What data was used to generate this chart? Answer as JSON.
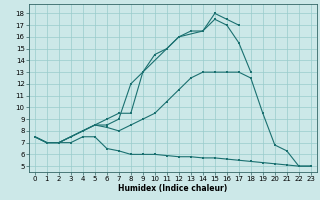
{
  "xlabel": "Humidex (Indice chaleur)",
  "bg_color": "#cce8e8",
  "grid_color": "#99cccc",
  "line_color": "#1a7070",
  "xlim": [
    -0.5,
    23.5
  ],
  "ylim": [
    4.5,
    18.8
  ],
  "xticks": [
    0,
    1,
    2,
    3,
    4,
    5,
    6,
    7,
    8,
    9,
    10,
    11,
    12,
    13,
    14,
    15,
    16,
    17,
    18,
    19,
    20,
    21,
    22,
    23
  ],
  "yticks": [
    5,
    6,
    7,
    8,
    9,
    10,
    11,
    12,
    13,
    14,
    15,
    16,
    17,
    18
  ],
  "line1_x": [
    0,
    1,
    2,
    3,
    4,
    5,
    6,
    7,
    8,
    9,
    10,
    11,
    12,
    13,
    14,
    15,
    16,
    17,
    18,
    19,
    20,
    21,
    22,
    23
  ],
  "line1_y": [
    7.5,
    7.0,
    7.0,
    7.0,
    7.5,
    7.5,
    6.5,
    6.3,
    6.0,
    6.0,
    6.0,
    5.9,
    5.8,
    5.8,
    5.7,
    5.7,
    5.6,
    5.5,
    5.4,
    5.3,
    5.2,
    5.1,
    5.0,
    5.0
  ],
  "line2_x": [
    0,
    1,
    2,
    3,
    4,
    5,
    6,
    7,
    8,
    9,
    10,
    11,
    12,
    13,
    14,
    15,
    16,
    17,
    18,
    19,
    20,
    21,
    22,
    23
  ],
  "line2_y": [
    7.5,
    7.0,
    7.0,
    7.5,
    8.0,
    8.5,
    8.3,
    8.0,
    8.5,
    9.0,
    9.5,
    10.5,
    11.5,
    12.5,
    13.0,
    13.0,
    13.0,
    13.0,
    12.5,
    9.5,
    6.8,
    6.3,
    5.0,
    5.0
  ],
  "line3_x": [
    0,
    1,
    2,
    3,
    4,
    5,
    6,
    7,
    8,
    9,
    10,
    11,
    12,
    13,
    14,
    15,
    16,
    17,
    18
  ],
  "line3_y": [
    7.5,
    7.0,
    7.0,
    7.5,
    8.0,
    8.5,
    9.0,
    9.5,
    9.5,
    13.0,
    14.5,
    15.0,
    16.0,
    16.5,
    16.5,
    17.5,
    17.0,
    15.5,
    13.0
  ],
  "line4_x": [
    0,
    1,
    2,
    3,
    4,
    5,
    6,
    7,
    8,
    9,
    11,
    12,
    14,
    15,
    16,
    17
  ],
  "line4_y": [
    7.5,
    7.0,
    7.0,
    7.5,
    8.0,
    8.5,
    8.5,
    9.0,
    12.0,
    13.0,
    15.0,
    16.0,
    16.5,
    18.0,
    17.5,
    17.0
  ]
}
